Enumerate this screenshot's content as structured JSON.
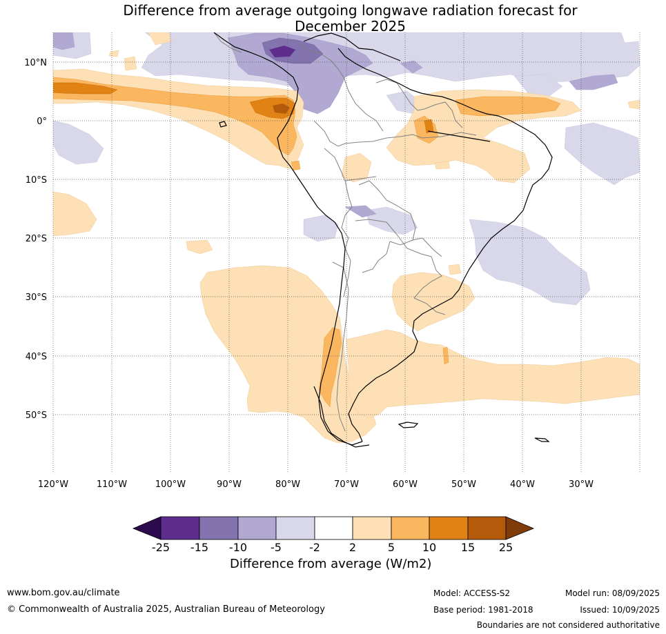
{
  "title": {
    "line1": "Difference from average outgoing longwave radiation forecast for",
    "line2": "December 2025"
  },
  "axes": {
    "lat_labels": [
      "10°N",
      "0°",
      "10°S",
      "20°S",
      "30°S",
      "40°S",
      "50°S"
    ],
    "lon_labels": [
      "120°W",
      "110°W",
      "100°W",
      "90°W",
      "80°W",
      "70°W",
      "60°W",
      "50°W",
      "40°W",
      "30°W"
    ]
  },
  "colorbar": {
    "title": "Difference from average (W/m2)",
    "tick_labels": [
      "-25",
      "-15",
      "-10",
      "-5",
      "-2",
      "2",
      "5",
      "10",
      "15",
      "25"
    ],
    "colors": [
      "#2d0a4e",
      "#5c2d8c",
      "#8373af",
      "#b1a9d1",
      "#d8d8ea",
      "#ffffff",
      "#fde0b5",
      "#fbb75f",
      "#e08314",
      "#b45b0b",
      "#7f3b08"
    ]
  },
  "footer": {
    "website": "www.bom.gov.au/climate",
    "copyright": "© Commonwealth of Australia 2025, Australian Bureau of Meteorology",
    "model": "Model: ACCESS-S2",
    "base_period": "Base period: 1981-2018",
    "model_run": "Model run: 08/09/2025",
    "issued": "Issued: 10/09/2025",
    "disclaimer": "Boundaries are not considered authoritative"
  }
}
